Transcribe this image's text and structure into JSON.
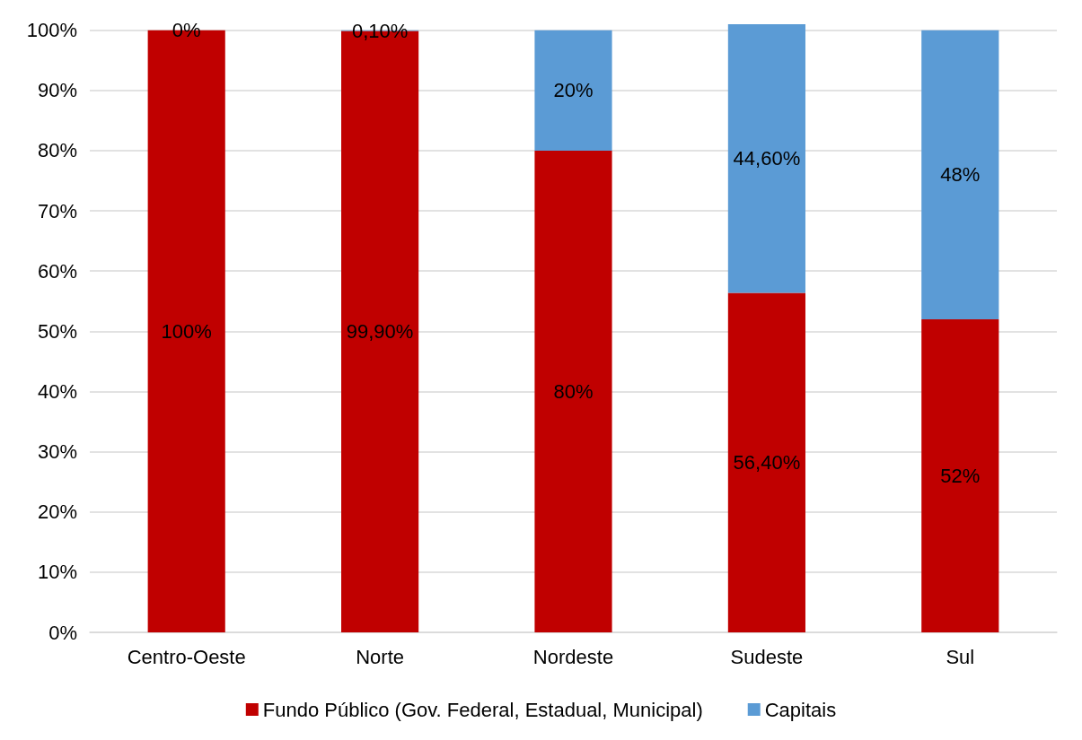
{
  "chart_data": {
    "type": "bar",
    "stacked": true,
    "categories": [
      "Centro-Oeste",
      "Norte",
      "Nordeste",
      "Sudeste",
      "Sul"
    ],
    "series": [
      {
        "name": "Fundo Público (Gov. Federal, Estadual, Municipal)",
        "color": "#c00000",
        "values": [
          100,
          99.9,
          80,
          56.4,
          52
        ],
        "value_labels": [
          "100%",
          "99,90%",
          "80%",
          "56,40%",
          "52%"
        ]
      },
      {
        "name": "Capitais",
        "color": "#5b9bd5",
        "values": [
          0,
          0.1,
          20,
          44.6,
          48
        ],
        "value_labels": [
          "0%",
          "0,10%",
          "20%",
          "44,60%",
          "48%"
        ]
      }
    ],
    "ylim": [
      0,
      101
    ],
    "yticks": [
      {
        "value": 0,
        "label": "0%"
      },
      {
        "value": 10,
        "label": "10%"
      },
      {
        "value": 20,
        "label": "20%"
      },
      {
        "value": 30,
        "label": "30%"
      },
      {
        "value": 40,
        "label": "40%"
      },
      {
        "value": 50,
        "label": "50%"
      },
      {
        "value": 60,
        "label": "60%"
      },
      {
        "value": 70,
        "label": "70%"
      },
      {
        "value": 80,
        "label": "80%"
      },
      {
        "value": 90,
        "label": "90%"
      },
      {
        "value": 100,
        "label": "100%"
      }
    ],
    "grid": "y",
    "legend": "bottom"
  }
}
